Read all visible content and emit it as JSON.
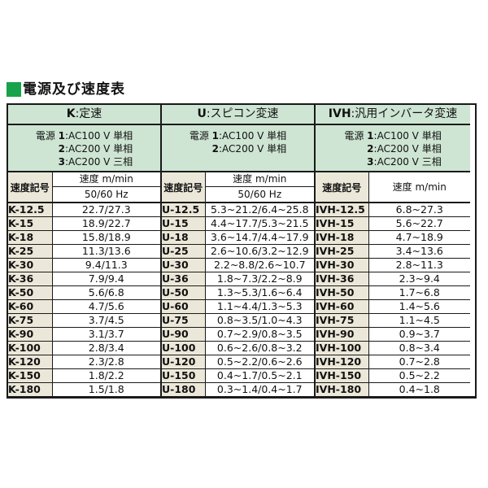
{
  "page_title": "電源及び速度表",
  "colors": {
    "accent_green": "#17a24b",
    "header_green": "#cee5d3",
    "label_beige": "#ece8d9",
    "border": "#1a1a1a"
  },
  "table": {
    "sections": [
      {
        "code": "K",
        "title_suffix": ":定速",
        "power_label": "電源",
        "power_options": [
          {
            "num": "1",
            "desc": ":AC100 V 単相"
          },
          {
            "num": "2",
            "desc": ":AC200 V 単相"
          },
          {
            "num": "3",
            "desc": ":AC200 V 三相"
          }
        ],
        "symbol_header": "速度記号",
        "speed_header": "速度 m/min",
        "freq_header": "50/60 Hz",
        "rows": [
          {
            "symbol": "K-12.5",
            "value": "22.7/27.3"
          },
          {
            "symbol": "K-15",
            "value": "18.9/22.7"
          },
          {
            "symbol": "K-18",
            "value": "15.8/18.9"
          },
          {
            "symbol": "K-25",
            "value": "11.3/13.6"
          },
          {
            "symbol": "K-30",
            "value": "9.4/11.3"
          },
          {
            "symbol": "K-36",
            "value": "7.9/9.4"
          },
          {
            "symbol": "K-50",
            "value": "5.6/6.8"
          },
          {
            "symbol": "K-60",
            "value": "4.7/5.6"
          },
          {
            "symbol": "K-75",
            "value": "3.7/4.5"
          },
          {
            "symbol": "K-90",
            "value": "3.1/3.7"
          },
          {
            "symbol": "K-100",
            "value": "2.8/3.4"
          },
          {
            "symbol": "K-120",
            "value": "2.3/2.8"
          },
          {
            "symbol": "K-150",
            "value": "1.8/2.2"
          },
          {
            "symbol": "K-180",
            "value": "1.5/1.8"
          }
        ]
      },
      {
        "code": "U",
        "title_suffix": ":スピコン変速",
        "power_label": "電源",
        "power_options": [
          {
            "num": "1",
            "desc": ":AC100 V 単相"
          },
          {
            "num": "2",
            "desc": ":AC200 V 単相"
          }
        ],
        "symbol_header": "速度記号",
        "speed_header": "速度 m/min",
        "freq_header": "50/60 Hz",
        "rows": [
          {
            "symbol": "U-12.5",
            "value": "5.3~21.2/6.4~25.8"
          },
          {
            "symbol": "U-15",
            "value": "4.4~17.7/5.3~21.5"
          },
          {
            "symbol": "U-18",
            "value": "3.6~14.7/4.4~17.9"
          },
          {
            "symbol": "U-25",
            "value": "2.6~10.6/3.2~12.9"
          },
          {
            "symbol": "U-30",
            "value": "2.2~8.8/2.6~10.7"
          },
          {
            "symbol": "U-36",
            "value": "1.8~7.3/2.2~8.9"
          },
          {
            "symbol": "U-50",
            "value": "1.3~5.3/1.6~6.4"
          },
          {
            "symbol": "U-60",
            "value": "1.1~4.4/1.3~5.3"
          },
          {
            "symbol": "U-75",
            "value": "0.8~3.5/1.0~4.3"
          },
          {
            "symbol": "U-90",
            "value": "0.7~2.9/0.8~3.5"
          },
          {
            "symbol": "U-100",
            "value": "0.6~2.6/0.8~3.2"
          },
          {
            "symbol": "U-120",
            "value": "0.5~2.2/0.6~2.6"
          },
          {
            "symbol": "U-150",
            "value": "0.4~1.7/0.5~2.1"
          },
          {
            "symbol": "U-180",
            "value": "0.3~1.4/0.4~1.7"
          }
        ]
      },
      {
        "code": "IVH",
        "title_suffix": ":汎用インバータ変速",
        "power_label": "電源",
        "power_options": [
          {
            "num": "1",
            "desc": ":AC100 V 単相"
          },
          {
            "num": "2",
            "desc": ":AC200 V 単相"
          },
          {
            "num": "3",
            "desc": ":AC200 V 三相"
          }
        ],
        "symbol_header": "速度記号",
        "speed_header": "速度 m/min",
        "freq_header": null,
        "rows": [
          {
            "symbol": "IVH-12.5",
            "value": "6.8~27.3"
          },
          {
            "symbol": "IVH-15",
            "value": "5.6~22.7"
          },
          {
            "symbol": "IVH-18",
            "value": "4.7~18.9"
          },
          {
            "symbol": "IVH-25",
            "value": "3.4~13.6"
          },
          {
            "symbol": "IVH-30",
            "value": "2.8~11.3"
          },
          {
            "symbol": "IVH-36",
            "value": "2.3~9.4"
          },
          {
            "symbol": "IVH-50",
            "value": "1.7~6.8"
          },
          {
            "symbol": "IVH-60",
            "value": "1.4~5.6"
          },
          {
            "symbol": "IVH-75",
            "value": "1.1~4.5"
          },
          {
            "symbol": "IVH-90",
            "value": "0.9~3.7"
          },
          {
            "symbol": "IVH-100",
            "value": "0.8~3.4"
          },
          {
            "symbol": "IVH-120",
            "value": "0.7~2.8"
          },
          {
            "symbol": "IVH-150",
            "value": "0.5~2.2"
          },
          {
            "symbol": "IVH-180",
            "value": "0.4~1.8"
          }
        ]
      }
    ]
  }
}
